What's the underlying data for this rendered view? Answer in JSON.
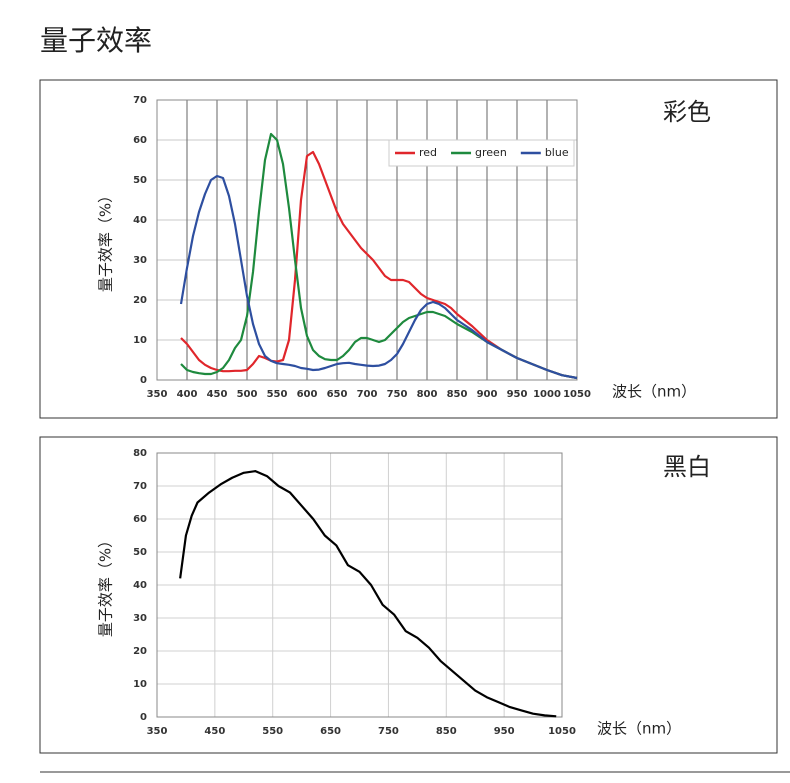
{
  "heading": "量子效率",
  "chart_data": [
    {
      "type": "line",
      "label": "彩色",
      "ylabel": "量子效率（%）",
      "xlabel": "波长（nm）",
      "x": [
        390,
        400,
        410,
        420,
        430,
        440,
        450,
        460,
        470,
        480,
        490,
        500,
        510,
        520,
        530,
        540,
        550,
        560,
        570,
        580,
        590,
        600,
        610,
        620,
        630,
        640,
        650,
        660,
        670,
        680,
        690,
        700,
        710,
        720,
        730,
        740,
        750,
        760,
        770,
        780,
        790,
        800,
        810,
        820,
        830,
        840,
        850,
        875,
        900,
        925,
        950,
        975,
        1000,
        1025,
        1050
      ],
      "series": [
        {
          "name": "red",
          "color": "#e0262b",
          "values": [
            10.5,
            9,
            7,
            5,
            3.8,
            3,
            2.5,
            2.2,
            2.2,
            2.3,
            2.3,
            2.5,
            4,
            6,
            5.5,
            4.8,
            4.6,
            5,
            10,
            25,
            45,
            56,
            57,
            54,
            50,
            46,
            42,
            39,
            37,
            35,
            33,
            31.5,
            30,
            28,
            26,
            25,
            25,
            25,
            24.5,
            23,
            21.5,
            20.5,
            20,
            19.5,
            19,
            18,
            16.5,
            13.5,
            10,
            7.5,
            5.5,
            4,
            2.5,
            1.2,
            0.5
          ]
        },
        {
          "name": "green",
          "color": "#1e8a3e",
          "values": [
            4,
            2.5,
            2,
            1.7,
            1.5,
            1.5,
            2,
            3,
            5,
            8,
            10,
            16,
            27,
            42,
            55,
            61.5,
            60,
            54,
            43,
            30,
            18,
            11,
            7.5,
            6,
            5.2,
            5,
            5,
            6,
            7.5,
            9.5,
            10.5,
            10.5,
            10,
            9.5,
            10,
            11.5,
            13,
            14.5,
            15.5,
            16,
            16.5,
            17,
            17,
            16.5,
            16,
            15,
            14,
            12,
            9.5,
            7.5,
            5.5,
            4,
            2.5,
            1.2,
            0.5
          ]
        },
        {
          "name": "blue",
          "color": "#2e4fa0",
          "values": [
            19,
            28,
            36,
            42,
            46.5,
            50,
            51,
            50.5,
            46,
            39,
            30,
            21,
            14,
            9,
            6,
            4.8,
            4.2,
            4,
            3.8,
            3.5,
            3,
            2.8,
            2.5,
            2.6,
            3,
            3.5,
            4,
            4.2,
            4.3,
            4,
            3.8,
            3.6,
            3.5,
            3.6,
            4,
            5,
            6.5,
            9,
            12,
            15,
            17.5,
            19,
            19.5,
            19,
            18,
            16.5,
            15,
            12.5,
            9.5,
            7.5,
            5.5,
            4,
            2.5,
            1.2,
            0.5
          ]
        }
      ],
      "xlim": [
        350,
        1050
      ],
      "ylim": [
        0,
        70
      ],
      "xticks": [
        350,
        400,
        450,
        500,
        550,
        600,
        650,
        700,
        750,
        800,
        850,
        900,
        950,
        1000,
        1050
      ],
      "yticks": [
        0,
        10,
        20,
        30,
        40,
        50,
        60,
        70
      ],
      "grid": true,
      "legend": "upper right"
    },
    {
      "type": "line",
      "label": "黑白",
      "ylabel": "量子效率（%）",
      "xlabel": "波长（nm）",
      "x": [
        390,
        400,
        410,
        420,
        440,
        460,
        480,
        500,
        520,
        540,
        560,
        580,
        600,
        620,
        640,
        660,
        680,
        700,
        720,
        740,
        760,
        780,
        800,
        820,
        840,
        860,
        880,
        900,
        920,
        940,
        960,
        980,
        1000,
        1020,
        1040
      ],
      "values": [
        42,
        55,
        61,
        65,
        68,
        70.5,
        72.5,
        74,
        74.5,
        73,
        70,
        68,
        64,
        60,
        55,
        52,
        46,
        44,
        40,
        34,
        31,
        26,
        24,
        21,
        17,
        14,
        11,
        8,
        6,
        4.5,
        3,
        2,
        1,
        0.5,
        0.2
      ],
      "color": "#000000",
      "xlim": [
        350,
        1050
      ],
      "ylim": [
        0,
        80
      ],
      "xticks": [
        350,
        450,
        550,
        650,
        750,
        850,
        950,
        1050
      ],
      "yticks": [
        0,
        10,
        20,
        30,
        40,
        50,
        60,
        70,
        80
      ],
      "grid": true
    }
  ]
}
